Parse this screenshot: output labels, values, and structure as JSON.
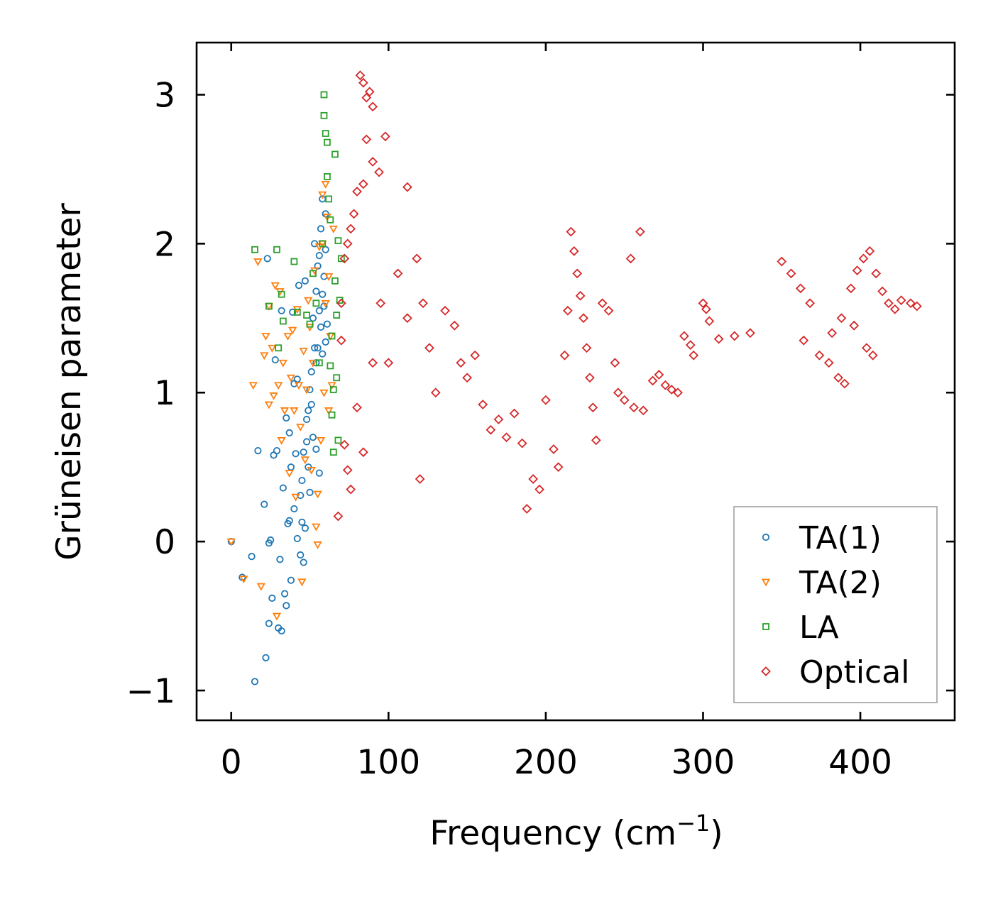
{
  "chart_data": {
    "type": "scatter",
    "title": "",
    "xlabel": "Frequency (cm",
    "xlabel_sup": "−1",
    "xlabel_close": ")",
    "ylabel": "Grüneisen parameter",
    "xlim": [
      -22,
      460
    ],
    "ylim": [
      -1.2,
      3.35
    ],
    "xticks": [
      0,
      100,
      200,
      300,
      400
    ],
    "yticks": [
      -1,
      0,
      1,
      2,
      3
    ],
    "xtick_labels": [
      "0",
      "100",
      "200",
      "300",
      "400"
    ],
    "ytick_labels": [
      "−1",
      "0",
      "1",
      "2",
      "3"
    ],
    "grid": false,
    "legend_position": "bottom-right",
    "series": [
      {
        "name": "TA(1)",
        "marker": "circle",
        "color": "#1f77b4",
        "points": [
          [
            0,
            0
          ],
          [
            7,
            -0.24
          ],
          [
            13,
            -0.1
          ],
          [
            15,
            -0.94
          ],
          [
            17,
            0.61
          ],
          [
            21,
            0.25
          ],
          [
            22,
            -0.78
          ],
          [
            23,
            1.9
          ],
          [
            24,
            -0.01
          ],
          [
            25,
            0.01
          ],
          [
            26,
            -0.38
          ],
          [
            24,
            -0.55
          ],
          [
            27,
            0.58
          ],
          [
            28,
            1.22
          ],
          [
            29,
            0.61
          ],
          [
            30,
            -0.58
          ],
          [
            31,
            -0.12
          ],
          [
            32,
            1.55
          ],
          [
            32,
            -0.6
          ],
          [
            33,
            0.36
          ],
          [
            34,
            -0.35
          ],
          [
            35,
            -0.43
          ],
          [
            35,
            0.83
          ],
          [
            36,
            0.12
          ],
          [
            37,
            0.14
          ],
          [
            37,
            0.73
          ],
          [
            38,
            0.5
          ],
          [
            38,
            -0.26
          ],
          [
            39,
            1.54
          ],
          [
            40,
            1.06
          ],
          [
            40,
            0.22
          ],
          [
            41,
            0.59
          ],
          [
            42,
            0.02
          ],
          [
            42,
            1.09
          ],
          [
            43,
            1.72
          ],
          [
            44,
            -0.09
          ],
          [
            44,
            0.31
          ],
          [
            45,
            0.41
          ],
          [
            45,
            0.13
          ],
          [
            46,
            -0.14
          ],
          [
            46,
            0.6
          ],
          [
            47,
            0.09
          ],
          [
            47,
            1.75
          ],
          [
            48,
            0.67
          ],
          [
            48,
            0.82
          ],
          [
            49,
            0.88
          ],
          [
            49,
            0.5
          ],
          [
            50,
            0.33
          ],
          [
            50,
            1.02
          ],
          [
            51,
            0.92
          ],
          [
            51,
            1.14
          ],
          [
            52,
            1.5
          ],
          [
            52,
            0.7
          ],
          [
            53,
            1.3
          ],
          [
            53,
            2.0
          ],
          [
            54,
            1.2
          ],
          [
            54,
            0.62
          ],
          [
            55,
            1.85
          ],
          [
            55,
            1.3
          ],
          [
            56,
            1.55
          ],
          [
            56,
            0.46
          ],
          [
            57,
            1.44
          ],
          [
            57,
            2.1
          ],
          [
            58,
            1.66
          ],
          [
            58,
            2.3
          ],
          [
            59,
            1.58
          ],
          [
            59,
            1.78
          ],
          [
            60,
            2.2
          ],
          [
            60,
            1.34
          ],
          [
            61,
            1.46
          ],
          [
            54,
            1.68
          ],
          [
            56,
            1.92
          ],
          [
            58,
            1.26
          ],
          [
            60,
            1.96
          ]
        ]
      },
      {
        "name": "TA(2)",
        "marker": "triangle-down",
        "color": "#ff7f0e",
        "points": [
          [
            0,
            0
          ],
          [
            8,
            -0.25
          ],
          [
            14,
            1.05
          ],
          [
            17,
            1.88
          ],
          [
            19,
            -0.3
          ],
          [
            21,
            1.25
          ],
          [
            22,
            1.38
          ],
          [
            24,
            1.58
          ],
          [
            24,
            0.92
          ],
          [
            26,
            1.3
          ],
          [
            27,
            0.98
          ],
          [
            28,
            1.72
          ],
          [
            29,
            -0.5
          ],
          [
            30,
            1.05
          ],
          [
            31,
            1.68
          ],
          [
            32,
            0.68
          ],
          [
            33,
            1.2
          ],
          [
            34,
            0.88
          ],
          [
            36,
            1.38
          ],
          [
            37,
            0.46
          ],
          [
            38,
            1.1
          ],
          [
            39,
            1.42
          ],
          [
            40,
            0.88
          ],
          [
            41,
            0.3
          ],
          [
            42,
            1.56
          ],
          [
            43,
            1.05
          ],
          [
            44,
            0.77
          ],
          [
            45,
            -0.27
          ],
          [
            46,
            1.28
          ],
          [
            47,
            0.55
          ],
          [
            48,
            1.02
          ],
          [
            49,
            1.62
          ],
          [
            50,
            1.44
          ],
          [
            51,
            0.48
          ],
          [
            52,
            1.2
          ],
          [
            53,
            1.82
          ],
          [
            54,
            0.1
          ],
          [
            55,
            0.32
          ],
          [
            55,
            -0.02
          ],
          [
            56,
            1.98
          ],
          [
            57,
            0.68
          ],
          [
            58,
            2.33
          ],
          [
            59,
            1.0
          ],
          [
            60,
            1.6
          ],
          [
            61,
            2.18
          ],
          [
            62,
            0.88
          ],
          [
            63,
            1.38
          ],
          [
            64,
            1.05
          ],
          [
            65,
            2.1
          ],
          [
            62,
            1.78
          ],
          [
            60,
            2.4
          ],
          [
            58,
            2.0
          ]
        ]
      },
      {
        "name": "LA",
        "marker": "square",
        "color": "#2ca02c",
        "points": [
          [
            15,
            1.96
          ],
          [
            29,
            1.96
          ],
          [
            24,
            1.58
          ],
          [
            32,
            1.66
          ],
          [
            33,
            1.48
          ],
          [
            30,
            1.3
          ],
          [
            40,
            1.88
          ],
          [
            42,
            1.54
          ],
          [
            48,
            1.52
          ],
          [
            50,
            1.46
          ],
          [
            52,
            1.8
          ],
          [
            54,
            1.6
          ],
          [
            56,
            1.2
          ],
          [
            58,
            2.0
          ],
          [
            59,
            3.0
          ],
          [
            59,
            2.86
          ],
          [
            60,
            2.74
          ],
          [
            61,
            2.68
          ],
          [
            61,
            2.45
          ],
          [
            62,
            2.3
          ],
          [
            63,
            2.16
          ],
          [
            63,
            1.18
          ],
          [
            64,
            0.85
          ],
          [
            64,
            1.38
          ],
          [
            65,
            1.02
          ],
          [
            65,
            0.6
          ],
          [
            66,
            1.75
          ],
          [
            66,
            2.6
          ],
          [
            67,
            1.52
          ],
          [
            67,
            1.1
          ],
          [
            68,
            2.02
          ],
          [
            68,
            0.68
          ],
          [
            69,
            1.62
          ],
          [
            70,
            1.9
          ]
        ]
      },
      {
        "name": "Optical",
        "marker": "diamond",
        "color": "#d62728",
        "points": [
          [
            82,
            3.13
          ],
          [
            84,
            3.08
          ],
          [
            86,
            2.98
          ],
          [
            88,
            3.02
          ],
          [
            90,
            2.92
          ],
          [
            86,
            2.7
          ],
          [
            90,
            2.55
          ],
          [
            94,
            2.48
          ],
          [
            98,
            2.72
          ],
          [
            84,
            2.4
          ],
          [
            80,
            2.35
          ],
          [
            78,
            2.2
          ],
          [
            76,
            2.1
          ],
          [
            74,
            2.0
          ],
          [
            72,
            1.9
          ],
          [
            70,
            1.6
          ],
          [
            70,
            1.35
          ],
          [
            72,
            0.65
          ],
          [
            74,
            0.48
          ],
          [
            76,
            0.35
          ],
          [
            68,
            0.17
          ],
          [
            80,
            0.9
          ],
          [
            84,
            0.6
          ],
          [
            90,
            1.2
          ],
          [
            95,
            1.6
          ],
          [
            100,
            1.2
          ],
          [
            106,
            1.8
          ],
          [
            112,
            2.38
          ],
          [
            112,
            1.5
          ],
          [
            118,
            1.9
          ],
          [
            122,
            1.6
          ],
          [
            126,
            1.3
          ],
          [
            120,
            0.42
          ],
          [
            130,
            1.0
          ],
          [
            136,
            1.55
          ],
          [
            142,
            1.45
          ],
          [
            146,
            1.2
          ],
          [
            150,
            1.1
          ],
          [
            155,
            1.25
          ],
          [
            160,
            0.92
          ],
          [
            165,
            0.75
          ],
          [
            170,
            0.82
          ],
          [
            175,
            0.7
          ],
          [
            180,
            0.86
          ],
          [
            185,
            0.66
          ],
          [
            188,
            0.22
          ],
          [
            192,
            0.42
          ],
          [
            196,
            0.35
          ],
          [
            200,
            0.95
          ],
          [
            205,
            0.62
          ],
          [
            208,
            0.5
          ],
          [
            212,
            1.25
          ],
          [
            214,
            1.55
          ],
          [
            216,
            2.08
          ],
          [
            218,
            1.95
          ],
          [
            220,
            1.8
          ],
          [
            222,
            1.65
          ],
          [
            224,
            1.5
          ],
          [
            226,
            1.3
          ],
          [
            228,
            1.1
          ],
          [
            230,
            0.9
          ],
          [
            232,
            0.68
          ],
          [
            236,
            1.6
          ],
          [
            240,
            1.55
          ],
          [
            244,
            1.2
          ],
          [
            246,
            1.0
          ],
          [
            250,
            0.95
          ],
          [
            254,
            1.9
          ],
          [
            256,
            0.9
          ],
          [
            260,
            2.08
          ],
          [
            262,
            0.88
          ],
          [
            268,
            1.08
          ],
          [
            272,
            1.12
          ],
          [
            276,
            1.05
          ],
          [
            280,
            1.02
          ],
          [
            284,
            1.0
          ],
          [
            288,
            1.38
          ],
          [
            292,
            1.32
          ],
          [
            294,
            1.25
          ],
          [
            300,
            1.6
          ],
          [
            302,
            1.56
          ],
          [
            304,
            1.48
          ],
          [
            310,
            1.36
          ],
          [
            320,
            1.38
          ],
          [
            330,
            1.4
          ],
          [
            350,
            1.88
          ],
          [
            356,
            1.8
          ],
          [
            362,
            1.7
          ],
          [
            368,
            1.6
          ],
          [
            364,
            1.35
          ],
          [
            374,
            1.25
          ],
          [
            380,
            1.2
          ],
          [
            386,
            1.1
          ],
          [
            390,
            1.06
          ],
          [
            382,
            1.4
          ],
          [
            388,
            1.5
          ],
          [
            394,
            1.7
          ],
          [
            398,
            1.82
          ],
          [
            402,
            1.9
          ],
          [
            406,
            1.95
          ],
          [
            410,
            1.8
          ],
          [
            414,
            1.68
          ],
          [
            418,
            1.6
          ],
          [
            422,
            1.56
          ],
          [
            426,
            1.62
          ],
          [
            432,
            1.6
          ],
          [
            436,
            1.58
          ],
          [
            408,
            1.25
          ],
          [
            404,
            1.3
          ],
          [
            396,
            1.45
          ]
        ]
      }
    ]
  }
}
